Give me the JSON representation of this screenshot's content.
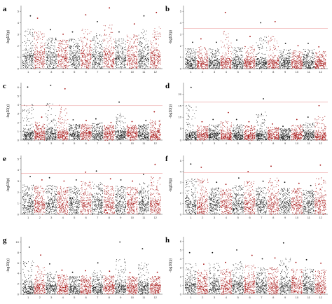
{
  "colors": {
    "odd_chromosome": "#111111",
    "even_chromosome": "#a30d0d",
    "threshold": "#e88a8a"
  },
  "chart_data": [
    {
      "type": "scatter",
      "panel": "a",
      "ylabel": "-log10(p)",
      "yticks": [
        0,
        1,
        2,
        3,
        4,
        5
      ],
      "ylim": [
        0,
        5.5
      ],
      "chromosomes": [
        "1",
        "2",
        "3",
        "4",
        "5",
        "6",
        "7",
        "8",
        "9",
        "10",
        "11",
        "12"
      ],
      "threshold": null,
      "base_level": 1.8,
      "peaks": [
        {
          "chr": "1",
          "value": 4.6
        },
        {
          "chr": "2",
          "value": 4.4
        },
        {
          "chr": "3",
          "value": 3.4
        },
        {
          "chr": "4",
          "value": 3.0
        },
        {
          "chr": "5",
          "value": 3.2
        },
        {
          "chr": "6",
          "value": 4.7
        },
        {
          "chr": "7",
          "value": 4.1
        },
        {
          "chr": "8",
          "value": 5.3
        },
        {
          "chr": "9",
          "value": 3.2
        },
        {
          "chr": "10",
          "value": 3.9
        },
        {
          "chr": "11",
          "value": 4.6
        },
        {
          "chr": "12",
          "value": 4.9
        }
      ]
    },
    {
      "type": "scatter",
      "panel": "b",
      "ylabel": "-log10(p)",
      "yticks": [
        0,
        1,
        2,
        3,
        4,
        5
      ],
      "ylim": [
        0,
        5.5
      ],
      "chromosomes": [
        "1",
        "2",
        "3",
        "4",
        "5",
        "6",
        "7",
        "8",
        "9",
        "10",
        "11",
        "12"
      ],
      "threshold": 3.5,
      "base_level": 1.0,
      "peaks": [
        {
          "chr": "1",
          "value": 2.3
        },
        {
          "chr": "2",
          "value": 2.6
        },
        {
          "chr": "3",
          "value": 2.3
        },
        {
          "chr": "4",
          "value": 4.9
        },
        {
          "chr": "5",
          "value": 2.5
        },
        {
          "chr": "6",
          "value": 2.8
        },
        {
          "chr": "7",
          "value": 4.0
        },
        {
          "chr": "8",
          "value": 4.1
        },
        {
          "chr": "9",
          "value": 2.2
        },
        {
          "chr": "10",
          "value": 2.0
        },
        {
          "chr": "11",
          "value": 2.2
        },
        {
          "chr": "12",
          "value": 1.9
        }
      ]
    },
    {
      "type": "scatter",
      "panel": "c",
      "ylabel": "-log10(p)",
      "yticks": [
        0,
        1,
        2,
        3,
        4,
        5,
        6
      ],
      "ylim": [
        0,
        6.5
      ],
      "chromosomes": [
        "1",
        "2",
        "3",
        "4",
        "5",
        "6",
        "7",
        "8",
        "9",
        "10",
        "11",
        "12"
      ],
      "threshold": 3.9,
      "base_level": 1.3,
      "peaks": [
        {
          "chr": "1",
          "value": 6.0
        },
        {
          "chr": "2",
          "value": 2.6
        },
        {
          "chr": "3",
          "value": 6.2
        },
        {
          "chr": "4",
          "value": 5.8
        },
        {
          "chr": "5",
          "value": 2.3
        },
        {
          "chr": "6",
          "value": 2.2
        },
        {
          "chr": "7",
          "value": 2.4
        },
        {
          "chr": "8",
          "value": 2.0
        },
        {
          "chr": "9",
          "value": 4.3
        },
        {
          "chr": "10",
          "value": 2.1
        },
        {
          "chr": "11",
          "value": 2.2
        },
        {
          "chr": "12",
          "value": 3.2
        }
      ]
    },
    {
      "type": "scatter",
      "panel": "d",
      "ylabel": "-log10(p)",
      "yticks": [
        0,
        5,
        10,
        15,
        20
      ],
      "ylim": [
        0,
        25
      ],
      "chromosomes": [
        "1",
        "2",
        "3",
        "4",
        "5",
        "6",
        "7",
        "8",
        "9",
        "10",
        "11",
        "12"
      ],
      "threshold": 16.5,
      "base_level": 4,
      "peaks": [
        {
          "chr": "1",
          "value": 23
        },
        {
          "chr": "2",
          "value": 8
        },
        {
          "chr": "3",
          "value": 9
        },
        {
          "chr": "4",
          "value": 12
        },
        {
          "chr": "5",
          "value": 9
        },
        {
          "chr": "6",
          "value": 8
        },
        {
          "chr": "7",
          "value": 18
        },
        {
          "chr": "8",
          "value": 7
        },
        {
          "chr": "9",
          "value": 6
        },
        {
          "chr": "10",
          "value": 9
        },
        {
          "chr": "11",
          "value": 10
        },
        {
          "chr": "12",
          "value": 15
        }
      ]
    },
    {
      "type": "scatter",
      "panel": "e",
      "ylabel": "-log10(p)",
      "yticks": [
        0,
        1,
        2,
        3,
        4,
        5
      ],
      "ylim": [
        0,
        5.3
      ],
      "chromosomes": [
        "1",
        "2",
        "3",
        "4",
        "5",
        "6",
        "7",
        "8",
        "9",
        "10",
        "11",
        "12"
      ],
      "threshold": 3.7,
      "base_level": 1.8,
      "peaks": [
        {
          "chr": "1",
          "value": 3.4
        },
        {
          "chr": "2",
          "value": 3.1
        },
        {
          "chr": "3",
          "value": 3.3
        },
        {
          "chr": "4",
          "value": 3.0
        },
        {
          "chr": "5",
          "value": 3.1
        },
        {
          "chr": "6",
          "value": 3.8
        },
        {
          "chr": "7",
          "value": 3.9
        },
        {
          "chr": "8",
          "value": 3.2
        },
        {
          "chr": "9",
          "value": 3.1
        },
        {
          "chr": "10",
          "value": 3.0
        },
        {
          "chr": "11",
          "value": 3.6
        },
        {
          "chr": "12",
          "value": 4.5
        }
      ]
    },
    {
      "type": "scatter",
      "panel": "f",
      "ylabel": "-log10(p)",
      "yticks": [
        0,
        1,
        2,
        3,
        4,
        5
      ],
      "ylim": [
        0,
        5.5
      ],
      "chromosomes": [
        "1",
        "2",
        "3",
        "4",
        "5",
        "6",
        "7",
        "8",
        "9",
        "10",
        "11",
        "12"
      ],
      "threshold": 3.9,
      "base_level": 1.8,
      "peaks": [
        {
          "chr": "1",
          "value": 4.7
        },
        {
          "chr": "2",
          "value": 4.4
        },
        {
          "chr": "3",
          "value": 3.0
        },
        {
          "chr": "4",
          "value": 2.8
        },
        {
          "chr": "5",
          "value": 3.4
        },
        {
          "chr": "6",
          "value": 4.0
        },
        {
          "chr": "7",
          "value": 3.1
        },
        {
          "chr": "8",
          "value": 4.5
        },
        {
          "chr": "9",
          "value": 3.0
        },
        {
          "chr": "10",
          "value": 2.9
        },
        {
          "chr": "11",
          "value": 2.7
        },
        {
          "chr": "12",
          "value": 4.6
        }
      ]
    },
    {
      "type": "scatter",
      "panel": "g",
      "ylabel": "-log10(p)",
      "yticks": [
        0,
        2,
        4,
        6,
        8,
        10
      ],
      "ylim": [
        0,
        11
      ],
      "chromosomes": [
        "1",
        "2",
        "3",
        "4",
        "5",
        "6",
        "7",
        "8",
        "9",
        "10",
        "11",
        "12"
      ],
      "threshold": null,
      "base_level": 2.5,
      "peaks": [
        {
          "chr": "1",
          "value": 9.0
        },
        {
          "chr": "2",
          "value": 7.5
        },
        {
          "chr": "3",
          "value": 5.8
        },
        {
          "chr": "4",
          "value": 4.6
        },
        {
          "chr": "5",
          "value": 4.2
        },
        {
          "chr": "6",
          "value": 4.5
        },
        {
          "chr": "7",
          "value": 6.0
        },
        {
          "chr": "8",
          "value": 4.4
        },
        {
          "chr": "9",
          "value": 10.0
        },
        {
          "chr": "10",
          "value": 4.1
        },
        {
          "chr": "11",
          "value": 8.7
        },
        {
          "chr": "12",
          "value": 4.2
        }
      ]
    },
    {
      "type": "scatter",
      "panel": "h",
      "ylabel": "-log10(p)",
      "yticks": [
        0,
        1,
        2,
        3,
        4,
        5,
        6
      ],
      "ylim": [
        0,
        6.5
      ],
      "chromosomes": [
        "1",
        "2",
        "3",
        "4",
        "5",
        "6",
        "7",
        "8",
        "9",
        "10",
        "11",
        "12"
      ],
      "threshold": null,
      "base_level": 1.8,
      "peaks": [
        {
          "chr": "1",
          "value": 4.7
        },
        {
          "chr": "2",
          "value": 3.4
        },
        {
          "chr": "3",
          "value": 4.7
        },
        {
          "chr": "4",
          "value": 3.6
        },
        {
          "chr": "5",
          "value": 5.0
        },
        {
          "chr": "6",
          "value": 4.4
        },
        {
          "chr": "7",
          "value": 4.0
        },
        {
          "chr": "8",
          "value": 4.1
        },
        {
          "chr": "9",
          "value": 5.8
        },
        {
          "chr": "10",
          "value": 3.6
        },
        {
          "chr": "11",
          "value": 3.9
        },
        {
          "chr": "12",
          "value": 3.5
        }
      ]
    }
  ]
}
